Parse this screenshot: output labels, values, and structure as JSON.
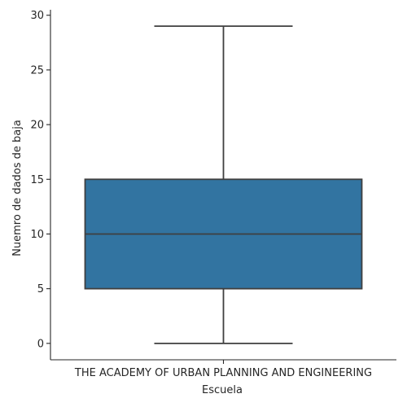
{
  "chart_data": {
    "type": "box",
    "title": "",
    "xlabel": "Escuela",
    "ylabel": "Nuemro de dados de baja",
    "categories": [
      "THE ACADEMY OF URBAN PLANNING AND ENGINEERING"
    ],
    "boxes": [
      {
        "category": "THE ACADEMY OF URBAN PLANNING AND ENGINEERING",
        "whisker_low": 0,
        "q1": 5,
        "median": 10,
        "q3": 15,
        "whisker_high": 29
      }
    ],
    "yticks": [
      0,
      5,
      10,
      15,
      20,
      25,
      30
    ],
    "ylim": [
      -1.5,
      30.5
    ],
    "grid": false,
    "box_color": "#3274a1",
    "line_color": "#3f3f3f",
    "axis_color": "#262626"
  }
}
